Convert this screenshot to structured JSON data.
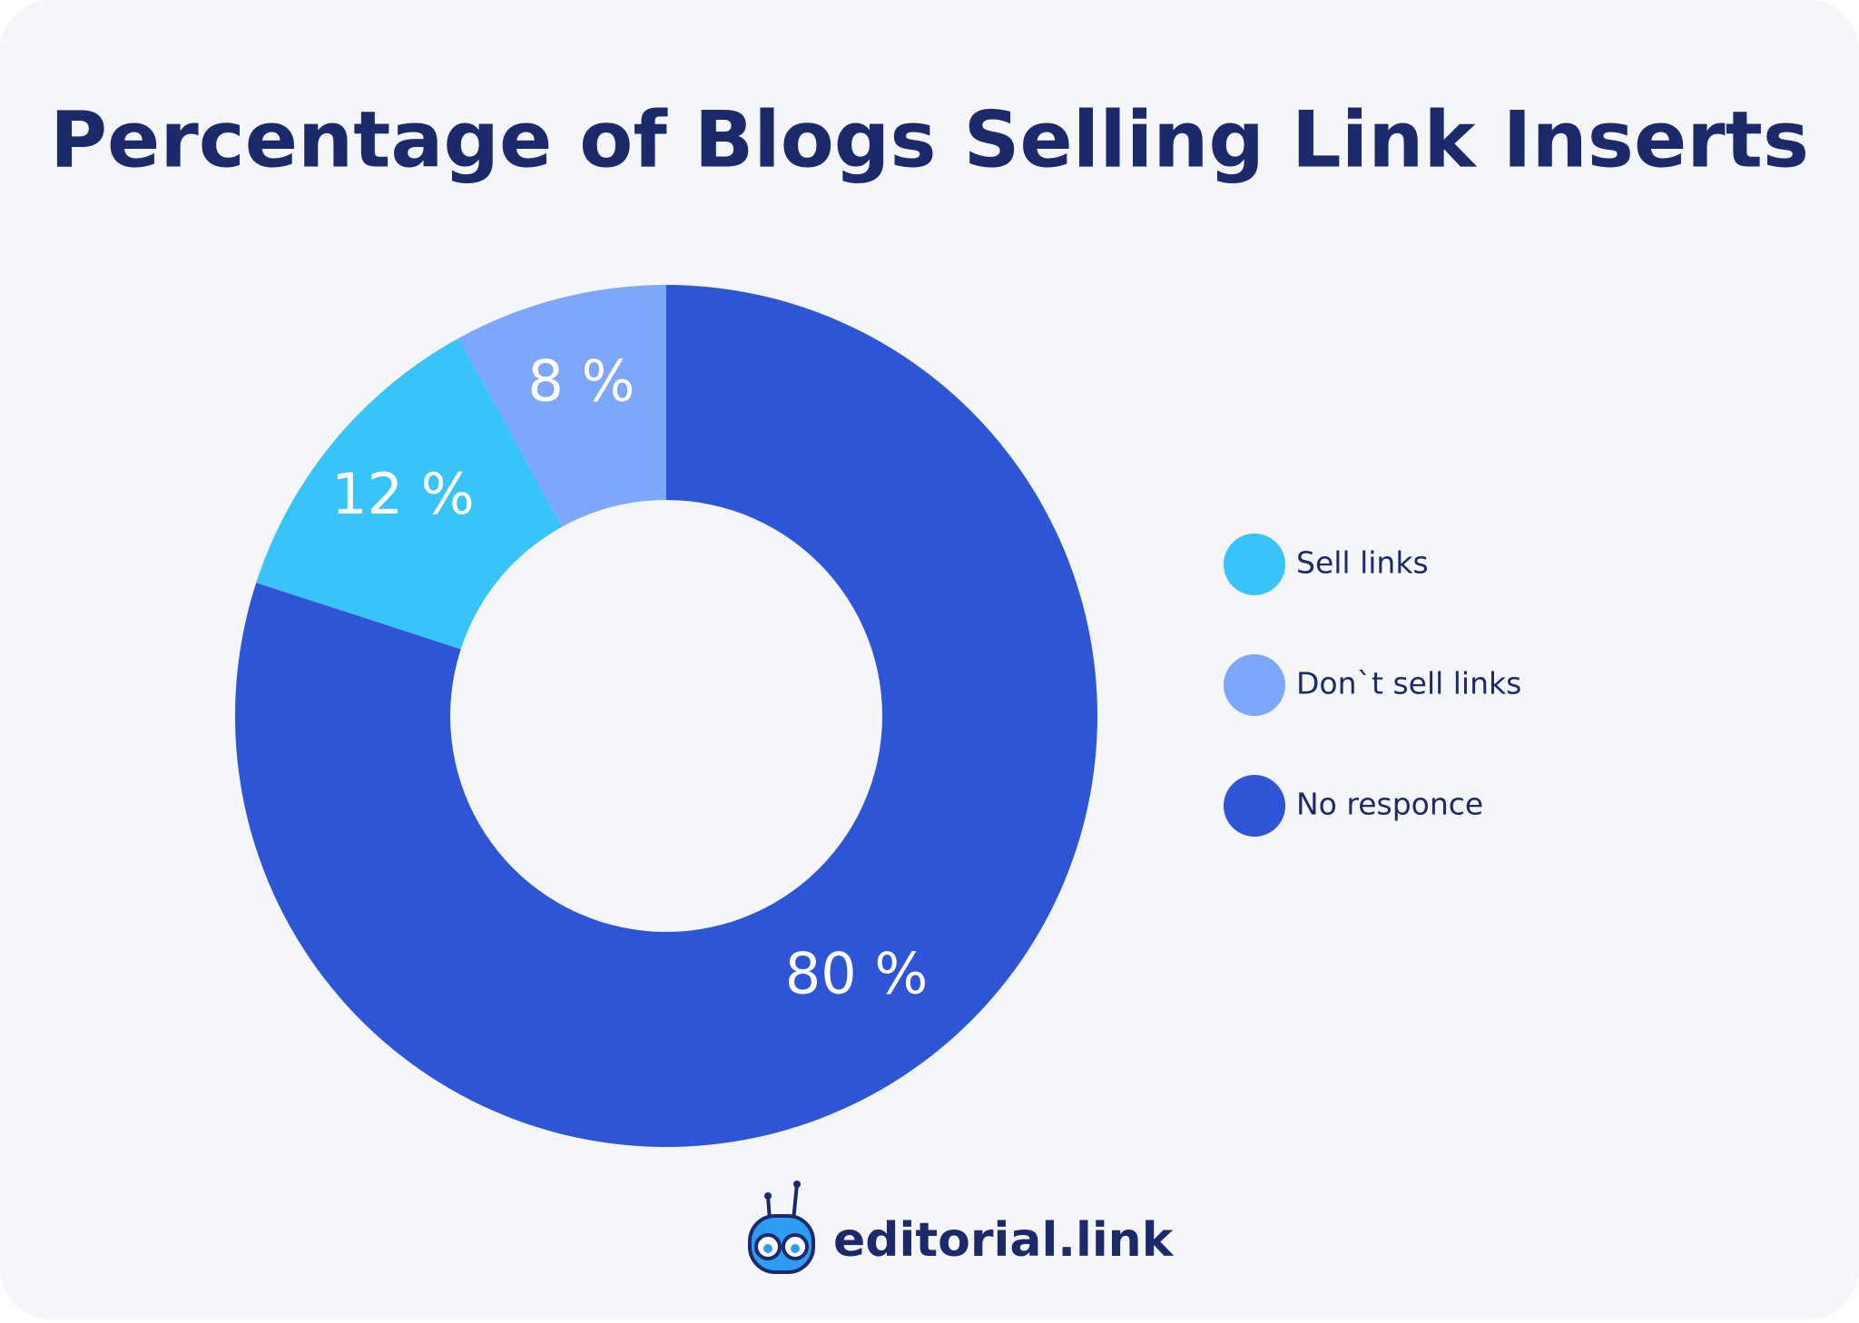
{
  "chart_data": {
    "type": "donut",
    "title": "Percentage of Blogs Selling Link Inserts",
    "categories": [
      "Sell links",
      "Don`t sell links",
      "No responce"
    ],
    "values": [
      12,
      8,
      80
    ],
    "value_labels": [
      "12 %",
      "8 %",
      "80 %"
    ],
    "colors": [
      "#38c4f8",
      "#7ea6fb",
      "#2e55d6"
    ],
    "legend": "right"
  },
  "logo_text": "editorial.link"
}
